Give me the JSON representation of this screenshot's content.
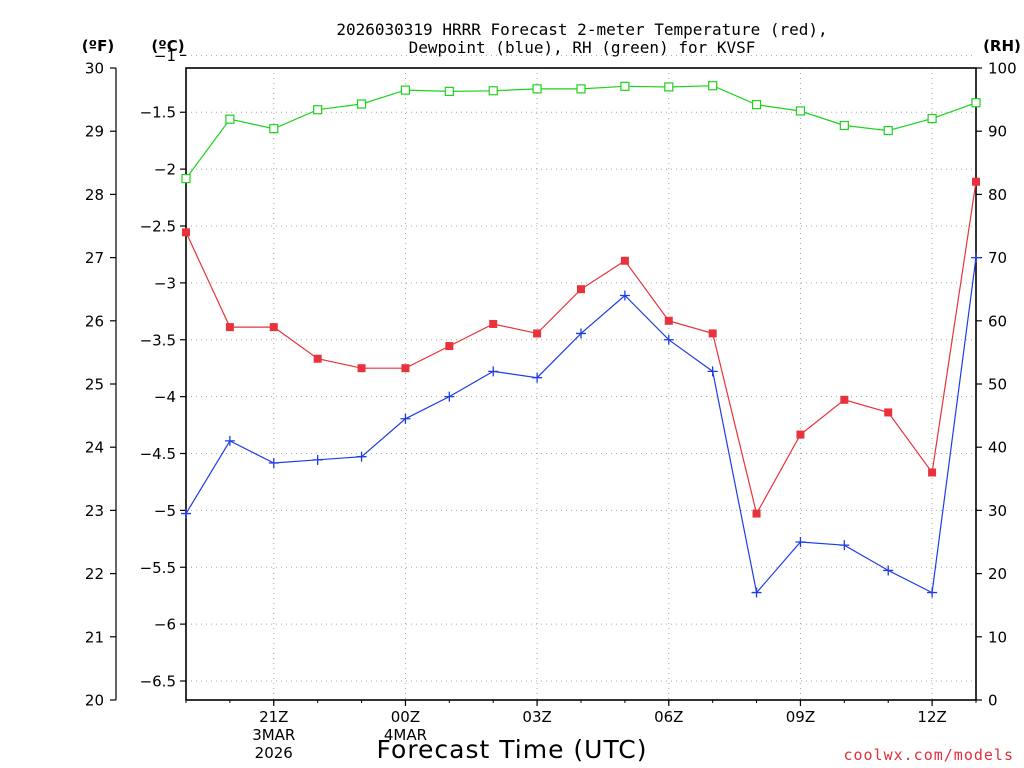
{
  "chart_data": {
    "type": "line",
    "title_lines": [
      "2026030319 HRRR Forecast 2-meter Temperature (red),",
      "Dewpoint (blue), RH (green) for KVSF"
    ],
    "xlabel": "Forecast Time (UTC)",
    "credit": "coolwx.com/models",
    "credit_color": "#e0303c",
    "axes": {
      "left_f": {
        "unit_label": "(ºF)",
        "ylim": [
          20.0,
          30.0
        ],
        "ticks": [
          "20",
          "21",
          "22",
          "23",
          "24",
          "25",
          "26",
          "27",
          "28",
          "29",
          "30"
        ]
      },
      "left_c": {
        "unit_label": "(ºC)",
        "ylim": [
          -6.667,
          -1.111
        ],
        "ticks": [
          "-6.5",
          "-6",
          "-5.5",
          "-5",
          "-4.5",
          "-4",
          "-3.5",
          "-3",
          "-2.5",
          "-2",
          "-1.5",
          "-1"
        ]
      },
      "right_rh": {
        "unit_label": "(RH)",
        "ylim": [
          0,
          100
        ],
        "ticks": [
          "0",
          "10",
          "20",
          "30",
          "40",
          "50",
          "60",
          "70",
          "80",
          "90",
          "100"
        ]
      }
    },
    "x": {
      "hours": [
        19,
        20,
        21,
        22,
        23,
        24,
        25,
        26,
        27,
        28,
        29,
        30,
        31,
        32,
        33,
        34,
        35,
        36,
        37
      ],
      "xlim": [
        19,
        37
      ]
    },
    "x_ticks": [
      {
        "hour": 21,
        "lines": [
          "21Z",
          "3MAR",
          "2026"
        ]
      },
      {
        "hour": 24,
        "lines": [
          "00Z",
          "4MAR"
        ]
      },
      {
        "hour": 27,
        "lines": [
          "03Z"
        ]
      },
      {
        "hour": 30,
        "lines": [
          "06Z"
        ]
      },
      {
        "hour": 33,
        "lines": [
          "09Z"
        ]
      },
      {
        "hour": 36,
        "lines": [
          "12Z"
        ]
      }
    ],
    "series": [
      {
        "name": "Temperature",
        "axis": "left_f",
        "color": "#e8323c",
        "marker": "filled-square",
        "values": [
          27.4,
          25.9,
          25.9,
          25.4,
          25.25,
          25.25,
          25.6,
          25.95,
          25.8,
          26.5,
          26.95,
          26.0,
          25.8,
          22.95,
          24.2,
          24.75,
          24.55,
          23.6,
          28.2
        ]
      },
      {
        "name": "Dewpoint",
        "axis": "left_f",
        "color": "#1e3ce6",
        "marker": "plus",
        "values": [
          22.95,
          24.1,
          23.75,
          23.8,
          23.85,
          24.45,
          24.8,
          25.2,
          25.1,
          25.8,
          26.4,
          25.7,
          25.2,
          21.7,
          22.5,
          22.45,
          22.05,
          21.7,
          27.0
        ]
      },
      {
        "name": "RH",
        "axis": "right_rh",
        "color": "#1ed21e",
        "marker": "open-square",
        "values": [
          82.5,
          91.9,
          90.4,
          93.4,
          94.3,
          96.5,
          96.3,
          96.4,
          96.7,
          96.7,
          97.1,
          97.0,
          97.2,
          94.2,
          93.2,
          90.9,
          90.1,
          92.0,
          94.5
        ]
      }
    ]
  }
}
